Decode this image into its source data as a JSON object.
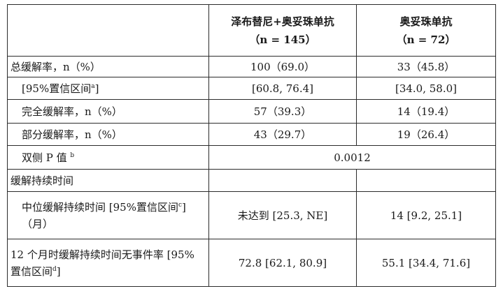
{
  "table": {
    "header": {
      "col2_line1": "泽布替尼+奥妥珠单抗",
      "col2_line2": "（n = 145）",
      "col3_line1": "奥妥珠单抗",
      "col3_line2": "（n = 72）"
    },
    "rows": [
      {
        "label": "总缓解率，n（%）",
        "c2": "100（69.0）",
        "c3": "33（45.8）"
      },
      {
        "label": "[95%置信区间",
        "sup": "a",
        "label_end": "]",
        "c2": "[60.8, 76.4]",
        "c3": "[34.0, 58.0]"
      },
      {
        "label": "完全缓解率，n（%）",
        "c2": "57（39.3）",
        "c3": "14（19.4）"
      },
      {
        "label": "部分缓解率，n（%）",
        "c2": "43（29.7）",
        "c3": "19（26.4）"
      },
      {
        "label": "双侧 P 值",
        "sup": "b",
        "merged": "0.0012"
      },
      {
        "label": "缓解持续时间"
      },
      {
        "label": "中位缓解持续时间 [95%置信区间",
        "sup": "c",
        "label_end": "]（月）",
        "c2": "未达到 [25.3, NE]",
        "c3": "14 [9.2, 25.1]"
      },
      {
        "label": "12 个月时缓解持续时间无事件率 [95%置信区间",
        "sup": "d",
        "label_end": "]",
        "c2": "72.8 [62.1, 80.9]",
        "c3": "55.1 [34.4, 71.6]"
      }
    ]
  }
}
